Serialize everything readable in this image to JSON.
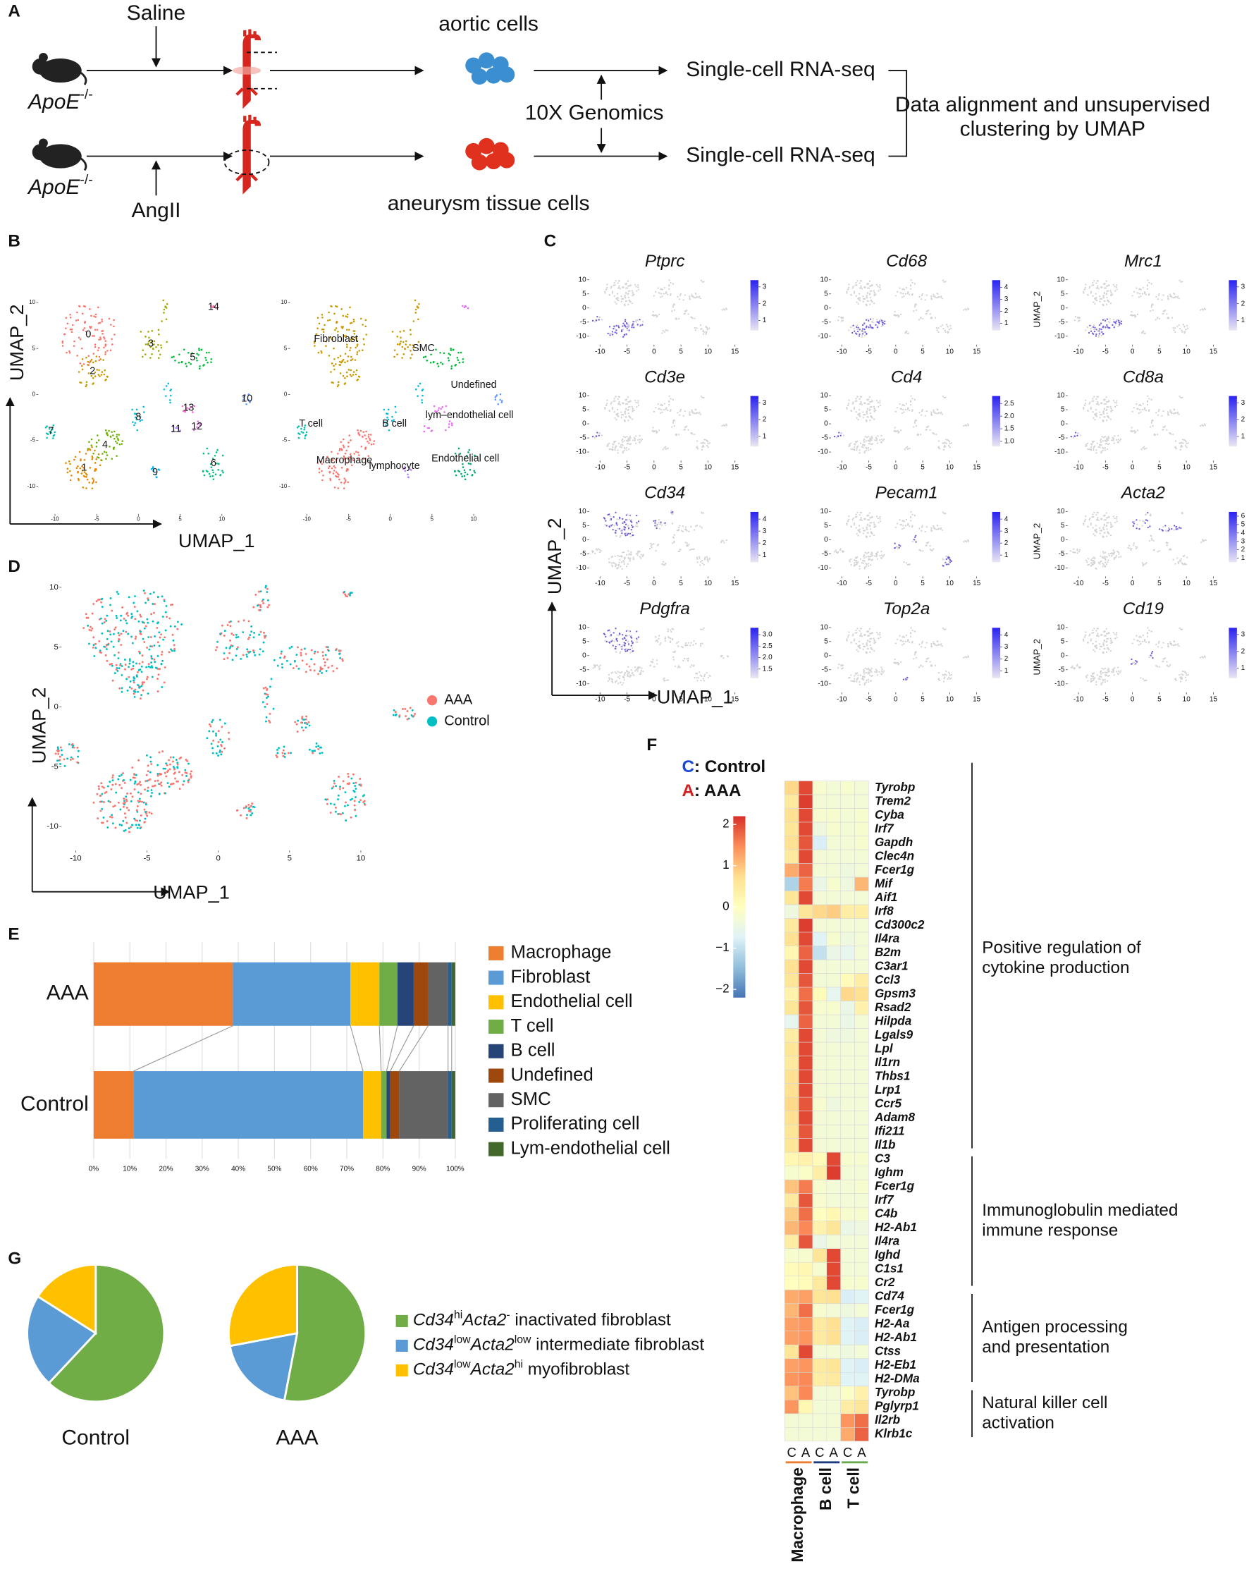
{
  "panel_labels": [
    "A",
    "B",
    "C",
    "D",
    "E",
    "F",
    "G"
  ],
  "workflow": {
    "mouse_label": [
      {
        "text": "ApoE",
        "style": "i"
      },
      {
        "text": "-/-",
        "style": "sup"
      }
    ],
    "saline": "Saline",
    "angii": "AngII",
    "aortic_cells": "aortic cells",
    "aneurysm_cells": "aneurysm tissue cells",
    "platform": "10X Genomics",
    "assay": "Single-cell RNA-seq",
    "analysis": [
      "Data alignment and unsupervised",
      "clustering by UMAP"
    ]
  },
  "umap_axes": {
    "x_label": "UMAP_1",
    "y_label": "UMAP_2"
  },
  "panel_b": {
    "xlim": [
      -12,
      16
    ],
    "ylim": [
      -13,
      12
    ],
    "xticks": [
      -10,
      -5,
      0,
      5,
      10
    ],
    "yticks": [
      10,
      5,
      0,
      -5,
      -10
    ],
    "clusters": [
      "0",
      "1",
      "2",
      "3",
      "4",
      "5",
      "6",
      "7",
      "8",
      "9",
      "10",
      "11",
      "12",
      "13",
      "14"
    ],
    "cell_types": [
      "Fibroblast",
      "SMC",
      "Undefined",
      "T cell",
      "B cell",
      "lym–endothelial cell",
      "Macrophage",
      "lymphocyte",
      "Endothelial cell"
    ]
  },
  "panel_c": {
    "xlim": [
      -12,
      16
    ],
    "ylim": [
      -13,
      12
    ],
    "xticks": [
      -10,
      -5,
      0,
      5,
      10,
      15
    ],
    "yticks": [
      10,
      5,
      0,
      -5,
      -10
    ],
    "genes": [
      {
        "name": "Ptprc",
        "clim": [
          0.4,
          3.4
        ],
        "ticks": [
          3,
          2,
          1
        ]
      },
      {
        "name": "Cd68",
        "clim": [
          0.4,
          4.6
        ],
        "ticks": [
          4,
          3,
          2,
          1
        ]
      },
      {
        "name": "Mrc1",
        "clim": [
          0.4,
          3.4
        ],
        "ticks": [
          3,
          2,
          1
        ]
      },
      {
        "name": "Cd3e",
        "clim": [
          0.4,
          3.4
        ],
        "ticks": [
          3,
          2,
          1
        ]
      },
      {
        "name": "Cd4",
        "clim": [
          0.8,
          2.8
        ],
        "ticks": [
          {
            "value": 2.5,
            "label": "2.5"
          },
          {
            "value": 2,
            "label": "2.0"
          },
          {
            "value": 1.5,
            "label": "1.5"
          },
          {
            "value": 1,
            "label": "1.0"
          }
        ]
      },
      {
        "name": "Cd8a",
        "clim": [
          0.4,
          3.4
        ],
        "ticks": [
          3,
          2,
          1
        ]
      },
      {
        "name": "Cd34",
        "clim": [
          0.4,
          4.6
        ],
        "ticks": [
          4,
          3,
          2,
          1
        ]
      },
      {
        "name": "Pecam1",
        "clim": [
          0.4,
          4.6
        ],
        "ticks": [
          4,
          3,
          2,
          1
        ]
      },
      {
        "name": "Acta2",
        "clim": [
          0.5,
          6.5
        ],
        "ticks": [
          6,
          5,
          4,
          3,
          2,
          1
        ]
      },
      {
        "name": "Pdgfra",
        "clim": [
          1.1,
          3.3
        ],
        "ticks": [
          {
            "value": 3,
            "label": "3.0"
          },
          {
            "value": 2.5,
            "label": "2.5"
          },
          {
            "value": 2,
            "label": "2.0"
          },
          {
            "value": 1.5,
            "label": "1.5"
          }
        ]
      },
      {
        "name": "Top2a",
        "clim": [
          0.4,
          4.6
        ],
        "ticks": [
          4,
          3,
          2,
          1
        ]
      },
      {
        "name": "Cd19",
        "clim": [
          0.4,
          3.4
        ],
        "ticks": [
          3,
          2,
          1
        ]
      }
    ]
  },
  "panel_d": {
    "xlim": [
      -11,
      15
    ],
    "ylim": [
      -12,
      11
    ],
    "xticks": [
      -10,
      -5,
      0,
      5,
      10
    ],
    "yticks": [
      10,
      5,
      0,
      -5,
      -10
    ],
    "legend": [
      {
        "name": "AAA",
        "color": "#f8766d"
      },
      {
        "name": "Control",
        "color": "#00bfc4"
      }
    ]
  },
  "chart_data": [
    {
      "type": "bar",
      "orientation": "horizontal",
      "stacked": true,
      "categories": [
        "AAA",
        "Control"
      ],
      "series": [
        {
          "name": "Macrophage",
          "color": "#ed7d31",
          "values": [
            38.5,
            11
          ]
        },
        {
          "name": "Fibroblast",
          "color": "#5b9bd5",
          "values": [
            32.5,
            63.5
          ]
        },
        {
          "name": "Endothelial cell",
          "color": "#ffc000",
          "values": [
            8,
            5
          ]
        },
        {
          "name": "T cell",
          "color": "#70ad47",
          "values": [
            5,
            1.5
          ]
        },
        {
          "name": "B cell",
          "color": "#264478",
          "values": [
            4.5,
            1
          ]
        },
        {
          "name": "Undefined",
          "color": "#9e480e",
          "values": [
            4,
            2.5
          ]
        },
        {
          "name": "SMC",
          "color": "#636363",
          "values": [
            5.5,
            13.5
          ]
        },
        {
          "name": "Proliferating cell",
          "color": "#255e91",
          "values": [
            1,
            1
          ]
        },
        {
          "name": "Lym-endothelial cell",
          "color": "#43682b",
          "values": [
            1,
            1
          ]
        }
      ],
      "xlim": [
        0,
        100
      ],
      "xticks": [
        {
          "value": 0,
          "label": "0%"
        },
        {
          "value": 10,
          "label": "10%"
        },
        {
          "value": 20,
          "label": "20%"
        },
        {
          "value": 30,
          "label": "30%"
        },
        {
          "value": 40,
          "label": "40%"
        },
        {
          "value": 50,
          "label": "50%"
        },
        {
          "value": 60,
          "label": "60%"
        },
        {
          "value": 70,
          "label": "70%"
        },
        {
          "value": 80,
          "label": "80%"
        },
        {
          "value": 90,
          "label": "90%"
        },
        {
          "value": 100,
          "label": "100%"
        }
      ],
      "grid": true
    },
    {
      "type": "heatmap",
      "legend": [
        {
          "key": "C",
          "text": ": Control",
          "color": "#1a47d6"
        },
        {
          "key": "A",
          "text": ": AAA",
          "color": "#d42020"
        }
      ],
      "clim": [
        -2.2,
        2.2
      ],
      "colors": [
        "#4575b4",
        "#91bfdb",
        "#e0f3f8",
        "#ffffbf",
        "#fee090",
        "#fc8d59",
        "#d73027"
      ],
      "colorbar_ticks": [
        2,
        1,
        0,
        {
          "value": -1,
          "label": "−1"
        },
        {
          "value": -2,
          "label": "−2"
        }
      ],
      "columns": [
        {
          "name": "Macrophage",
          "color": "#ed7d31",
          "samples": [
            "C",
            "A"
          ]
        },
        {
          "name": "B cell",
          "color": "#1f3a7a",
          "samples": [
            "C",
            "A"
          ]
        },
        {
          "name": "T cell",
          "color": "#6aa84f",
          "samples": [
            "C",
            "A"
          ]
        }
      ],
      "groups": [
        {
          "label": [
            "Positive regulation of",
            "cytokine production"
          ],
          "color": "#1f4e9c",
          "genes": [
            "Tyrobp",
            "Trem2",
            "Cyba",
            "Irf7",
            "Gapdh",
            "Clec4n",
            "Fcer1g",
            "Mif",
            "Aif1",
            "Irf8",
            "Cd300c2",
            "Il4ra",
            "B2m",
            "C3ar1",
            "Ccl3",
            "Gpsm3",
            "Rsad2",
            "Hilpda",
            "Lgals9",
            "Lpl",
            "Il1rn",
            "Thbs1",
            "Lrp1",
            "Ccr5",
            "Adam8",
            "Ifi211",
            "Il1b"
          ],
          "values": [
            [
              0.8,
              2,
              -0.2,
              -0.3,
              -0.2,
              -0.3
            ],
            [
              0.5,
              2.1,
              -0.3,
              -0.3,
              -0.3,
              -0.3
            ],
            [
              0.7,
              2,
              -0.2,
              -0.2,
              -0.3,
              -0.2
            ],
            [
              0.6,
              2,
              -0.4,
              -0.2,
              -0.3,
              -0.2
            ],
            [
              0.7,
              1.9,
              -0.8,
              -0.3,
              -0.3,
              -0.2
            ],
            [
              0.5,
              2,
              -0.3,
              -0.3,
              -0.3,
              -0.3
            ],
            [
              1.2,
              1.8,
              -0.3,
              -0.3,
              -0.4,
              -0.3
            ],
            [
              -1.2,
              1.6,
              -0.5,
              -0.2,
              -0.4,
              1.1
            ],
            [
              0.6,
              2,
              -0.3,
              -0.3,
              -0.3,
              -0.3
            ],
            [
              -0.4,
              0.6,
              0.8,
              0.9,
              0.4,
              0.4
            ],
            [
              0.5,
              2.1,
              -0.3,
              -0.3,
              -0.3,
              -0.3
            ],
            [
              0.7,
              2,
              -0.7,
              -0.2,
              -0.4,
              -0.3
            ],
            [
              0.2,
              1.8,
              -1,
              -0.5,
              -0.6,
              -0.3
            ],
            [
              0.7,
              2,
              -0.3,
              -0.3,
              -0.3,
              -0.3
            ],
            [
              0.6,
              1.9,
              -0.3,
              -0.3,
              0.1,
              0.4
            ],
            [
              0.3,
              1.7,
              0.1,
              -0.6,
              0.8,
              0.7
            ],
            [
              0.6,
              1.9,
              -0.2,
              -0.2,
              -0.5,
              0.3
            ],
            [
              -0.6,
              1.8,
              -0.3,
              -0.3,
              -0.5,
              -0.3
            ],
            [
              0.4,
              2,
              -0.3,
              -0.4,
              -0.4,
              -0.3
            ],
            [
              0.6,
              2,
              -0.3,
              -0.3,
              -0.3,
              -0.3
            ],
            [
              0.5,
              2,
              -0.3,
              -0.3,
              -0.3,
              -0.3
            ],
            [
              0.7,
              2,
              -0.3,
              -0.3,
              -0.3,
              -0.3
            ],
            [
              0.7,
              2,
              -0.3,
              -0.3,
              -0.3,
              -0.3
            ],
            [
              0.8,
              1.9,
              -0.2,
              -0.4,
              -0.3,
              -0.3
            ],
            [
              0.7,
              2,
              -0.3,
              -0.3,
              -0.3,
              -0.3
            ],
            [
              0.6,
              1.9,
              -0.3,
              -0.3,
              -0.3,
              -0.3
            ],
            [
              0.6,
              2,
              -0.3,
              -0.3,
              -0.3,
              -0.3
            ]
          ]
        },
        {
          "label": [
            "Immunoglobulin mediated",
            "immune response"
          ],
          "color": "#138a7a",
          "genes": [
            "C3",
            "Ighm",
            "Fcer1g",
            "Irf7",
            "C4b",
            "H2-Ab1",
            "Il4ra",
            "Ighd",
            "C1s1",
            "Cr2"
          ],
          "values": [
            [
              0.2,
              0.3,
              0.1,
              2,
              -0.2,
              -0.2
            ],
            [
              -0.2,
              -0.1,
              0.4,
              2.1,
              -0.3,
              -0.3
            ],
            [
              1,
              1.6,
              -0.2,
              -0.3,
              -0.3,
              -0.2
            ],
            [
              0.5,
              1.9,
              -0.2,
              -0.3,
              -0.3,
              -0.3
            ],
            [
              0.9,
              1.7,
              0,
              0.2,
              -0.2,
              -0.2
            ],
            [
              1.1,
              1.5,
              0.3,
              0.6,
              -0.5,
              -0.4
            ],
            [
              0.4,
              1.9,
              -0.5,
              -0.3,
              -0.3,
              -0.3
            ],
            [
              -0.2,
              -0.2,
              0.6,
              2,
              -0.3,
              -0.3
            ],
            [
              0.1,
              0.2,
              -0.2,
              2,
              -0.3,
              -0.3
            ],
            [
              0,
              0.1,
              0.5,
              2,
              -0.2,
              -0.2
            ]
          ]
        },
        {
          "label": [
            "Antigen processing",
            "and presentation"
          ],
          "color": "#e39a19",
          "genes": [
            "Cd74",
            "Fcer1g",
            "H2-Aa",
            "H2-Ab1",
            "Ctss",
            "H2-Eb1",
            "H2-DMa"
          ],
          "values": [
            [
              1.2,
              1.3,
              0.6,
              0.7,
              -0.8,
              -0.7
            ],
            [
              1.1,
              1.7,
              -0.2,
              -0.3,
              -0.4,
              -0.3
            ],
            [
              1.3,
              1.4,
              0.5,
              0.7,
              -0.7,
              -0.8
            ],
            [
              1.3,
              1.4,
              0.5,
              0.7,
              -0.7,
              -0.8
            ],
            [
              0.6,
              2,
              -0.3,
              -0.3,
              -0.4,
              -0.3
            ],
            [
              1.3,
              1.4,
              0.5,
              0.6,
              -0.7,
              -0.8
            ],
            [
              1.4,
              1.5,
              0.4,
              0.5,
              -0.7,
              -0.7
            ]
          ]
        },
        {
          "label": [
            "Natural killer cell",
            "activation"
          ],
          "color": "#6a2a8c",
          "genes": [
            "Tyrobp",
            "Pglyrp1",
            "Il2rb",
            "Klrb1c"
          ],
          "values": [
            [
              1,
              1.5,
              -0.3,
              -0.3,
              -0.1,
              0.3
            ],
            [
              1.4,
              0.2,
              -0.3,
              -0.3,
              0.4,
              0.6
            ],
            [
              -0.3,
              -0.3,
              -0.3,
              -0.3,
              1.4,
              1.7
            ],
            [
              -0.3,
              -0.3,
              -0.3,
              -0.3,
              1.2,
              1.8
            ]
          ]
        }
      ]
    },
    {
      "type": "pie",
      "series": [
        {
          "color": "#70ad47",
          "name": [
            {
              "text": "Cd34",
              "style": "i"
            },
            {
              "text": "hi",
              "style": "sup"
            },
            {
              "text": "Acta2",
              "style": "i"
            },
            {
              "text": "-",
              "style": "sup"
            },
            {
              "text": " inactivated fibroblast",
              "style": "r"
            }
          ]
        },
        {
          "color": "#5b9bd5",
          "name": [
            {
              "text": "Cd34",
              "style": "i"
            },
            {
              "text": "low",
              "style": "sup"
            },
            {
              "text": "Acta2",
              "style": "i"
            },
            {
              "text": "low",
              "style": "sup"
            },
            {
              "text": " intermediate fibroblast",
              "style": "r"
            }
          ]
        },
        {
          "color": "#ffc000",
          "name": [
            {
              "text": "Cd34",
              "style": "i"
            },
            {
              "text": "low",
              "style": "sup"
            },
            {
              "text": "Acta2",
              "style": "i"
            },
            {
              "text": "hi",
              "style": "sup"
            },
            {
              "text": " myofibroblast",
              "style": "r"
            }
          ]
        }
      ],
      "pies": [
        {
          "label": "Control",
          "values": [
            62,
            22,
            16
          ]
        },
        {
          "label": "AAA",
          "values": [
            53,
            19,
            28
          ]
        }
      ]
    }
  ]
}
